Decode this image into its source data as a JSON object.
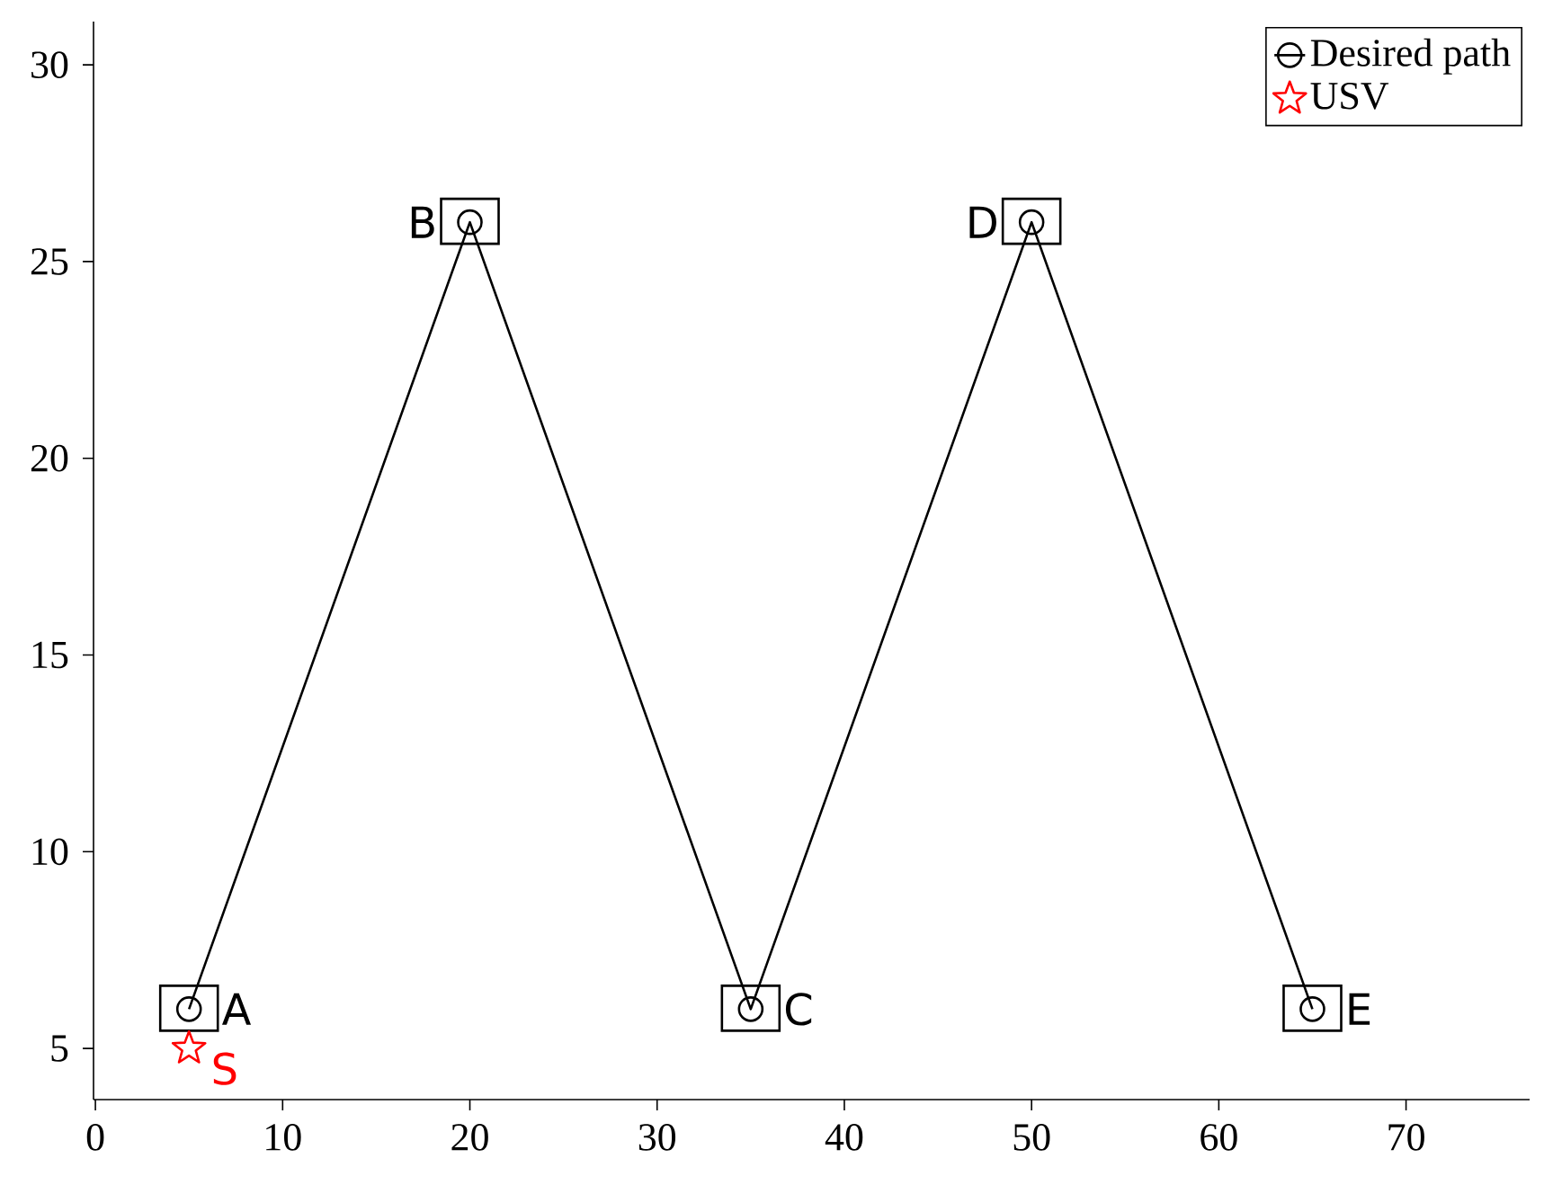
{
  "chart_data": {
    "type": "line",
    "x": [
      5,
      20,
      35,
      50,
      65
    ],
    "series": [
      {
        "name": "Desired path",
        "color": "#000000",
        "marker": "circle",
        "values": [
          6,
          26,
          6,
          26,
          6
        ]
      },
      {
        "name": "USV",
        "type": "scatter",
        "color": "#ff0000",
        "marker": "star",
        "x": [
          5
        ],
        "values": [
          5
        ]
      }
    ],
    "xlim": [
      -0.1,
      76.6
    ],
    "ylim": [
      3.7,
      31.1
    ],
    "xticks": [
      0,
      10,
      20,
      30,
      40,
      50,
      60,
      70
    ],
    "yticks": [
      5,
      10,
      15,
      20,
      25,
      30
    ],
    "grid": false,
    "legend": "top right",
    "annotations": [
      {
        "text": "A",
        "x": 5,
        "y": 6
      },
      {
        "text": "B",
        "x": 20,
        "y": 26
      },
      {
        "text": "C",
        "x": 35,
        "y": 6
      },
      {
        "text": "D",
        "x": 50,
        "y": 26
      },
      {
        "text": "E",
        "x": 65,
        "y": 6
      },
      {
        "text": "S",
        "x": 5,
        "y": 5
      }
    ]
  }
}
